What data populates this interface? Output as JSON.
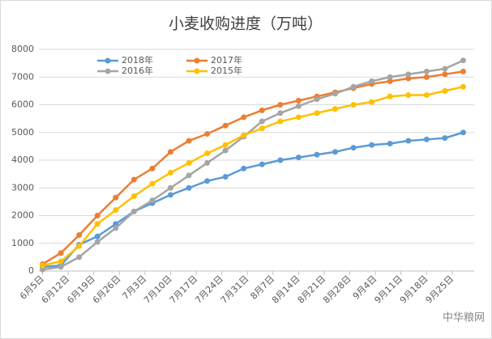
{
  "chart_data": {
    "type": "line",
    "title": "小麦收购进度（万吨）",
    "x": [
      0,
      5,
      10,
      15,
      20,
      25,
      30,
      35,
      40,
      45,
      50,
      55,
      60,
      65,
      70,
      75,
      80,
      85,
      90,
      95,
      100,
      105,
      110,
      115
    ],
    "xlim": [
      -1,
      118
    ],
    "xticks": [
      {
        "value": 0,
        "label": "6月5日"
      },
      {
        "value": 7,
        "label": "6月12日"
      },
      {
        "value": 14,
        "label": "6月19日"
      },
      {
        "value": 21,
        "label": "6月26日"
      },
      {
        "value": 28,
        "label": "7月3日"
      },
      {
        "value": 35,
        "label": "7月10日"
      },
      {
        "value": 42,
        "label": "7月17日"
      },
      {
        "value": 49,
        "label": "7月24日"
      },
      {
        "value": 56,
        "label": "7月31日"
      },
      {
        "value": 63,
        "label": "8月7日"
      },
      {
        "value": 70,
        "label": "8月14日"
      },
      {
        "value": 77,
        "label": "8月21日"
      },
      {
        "value": 84,
        "label": "8月28日"
      },
      {
        "value": 91,
        "label": "9月4日"
      },
      {
        "value": 98,
        "label": "9月11日"
      },
      {
        "value": 105,
        "label": "9月18日"
      },
      {
        "value": 112,
        "label": "9月25日"
      }
    ],
    "ylim": [
      0,
      8000
    ],
    "yticks": [
      0,
      1000,
      2000,
      3000,
      4000,
      5000,
      6000,
      7000,
      8000
    ],
    "grid": true,
    "series": [
      {
        "name": "2018年",
        "color": "#5b9bd5",
        "values": [
          150,
          200,
          950,
          1250,
          1700,
          2150,
          2450,
          2750,
          3000,
          3250,
          3400,
          3700,
          3850,
          4000,
          4100,
          4200,
          4300,
          4450,
          4550,
          4600,
          4700,
          4750,
          4800,
          5000
        ]
      },
      {
        "name": "2017年",
        "color": "#ed7d31",
        "values": [
          250,
          650,
          1300,
          2000,
          2650,
          3300,
          3700,
          4300,
          4700,
          4950,
          5250,
          5550,
          5800,
          6000,
          6150,
          6300,
          6450,
          6600,
          6750,
          6850,
          6950,
          7000,
          7100,
          7200
        ]
      },
      {
        "name": "2016年",
        "color": "#a5a5a5",
        "values": [
          50,
          150,
          500,
          1050,
          1550,
          2150,
          2550,
          3000,
          3450,
          3900,
          4350,
          4850,
          5400,
          5700,
          5950,
          6200,
          6400,
          6650,
          6850,
          7000,
          7100,
          7200,
          7300,
          7600
        ]
      },
      {
        "name": "2015年",
        "color": "#ffc000",
        "values": [
          200,
          350,
          900,
          1700,
          2200,
          2700,
          3150,
          3550,
          3900,
          4250,
          4550,
          4900,
          5150,
          5400,
          5550,
          5700,
          5850,
          6000,
          6100,
          6300,
          6350,
          6350,
          6500,
          6650
        ]
      }
    ]
  },
  "watermark": "中华粮网"
}
